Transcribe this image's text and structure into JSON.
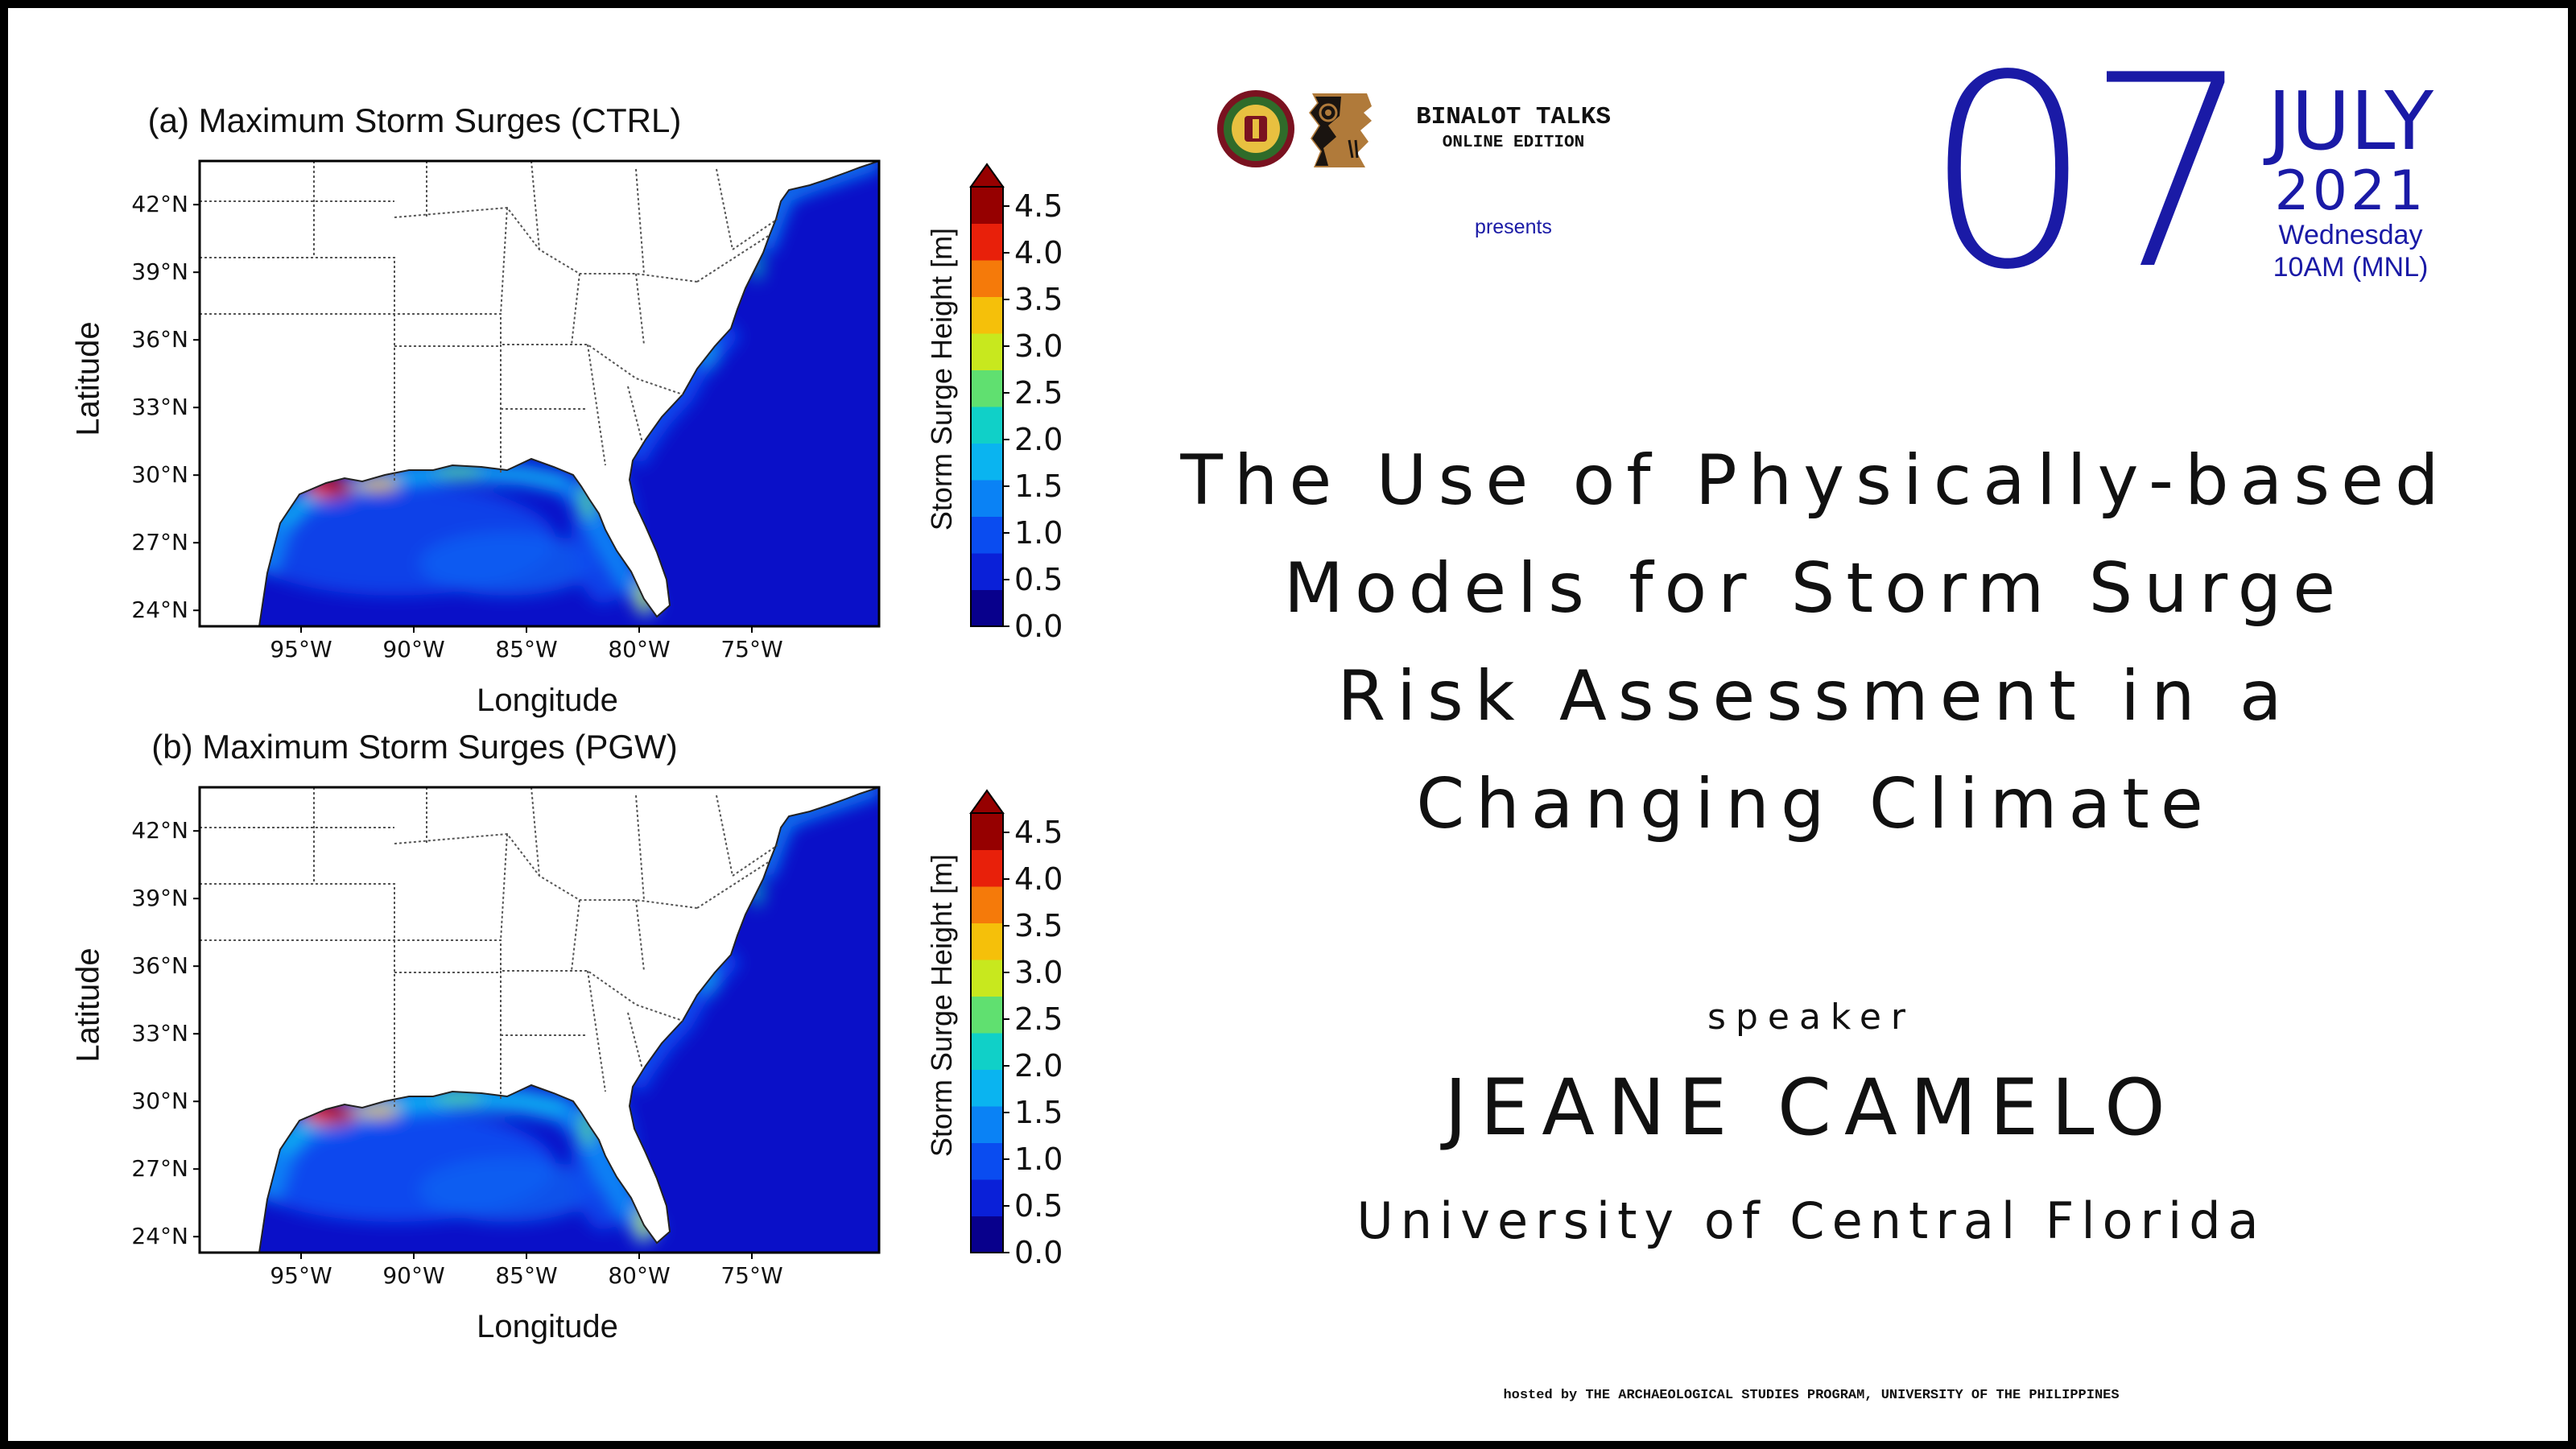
{
  "maps": [
    {
      "title": "(a) Maximum Storm Surges (CTRL)",
      "xlabel": "Longitude",
      "ylabel": "Latitude",
      "colorbar_label": "Storm Surge Height  [m]"
    },
    {
      "title": "(b) Maximum Storm Surges (PGW)",
      "xlabel": "Longitude",
      "ylabel": "Latitude",
      "colorbar_label": "Storm Surge Height  [m]"
    }
  ],
  "lat_ticks": [
    "42°N",
    "39°N",
    "36°N",
    "33°N",
    "30°N",
    "27°N",
    "24°N"
  ],
  "lon_ticks": [
    "95°W",
    "90°W",
    "85°W",
    "80°W",
    "75°W"
  ],
  "colorbar_ticks": [
    "4.5",
    "4.0",
    "3.5",
    "3.0",
    "2.5",
    "2.0",
    "1.5",
    "1.0",
    "0.5",
    "0.0"
  ],
  "colorbar_colors": [
    "#08008c",
    "#0a20d8",
    "#0a4cf0",
    "#0a82f5",
    "#0ab4f0",
    "#10d0c8",
    "#60e070",
    "#c8e81e",
    "#f5c00a",
    "#f57a0a",
    "#e8200a",
    "#960000"
  ],
  "header": {
    "event_name": "BINALOT TALKS",
    "edition": "ONLINE EDITION",
    "presents": "presents"
  },
  "date": {
    "day": "07",
    "month": "JULY",
    "year": "2021",
    "weekday": "Wednesday",
    "time": "10AM (MNL)"
  },
  "talk_title": [
    "The Use of Physically-based",
    "Models for Storm Surge",
    "Risk Assessment in a",
    "Changing Climate"
  ],
  "speaker": {
    "label": "speaker",
    "name": "JEANE CAMELO",
    "affiliation": "University of Central Florida"
  },
  "footer": "hosted by THE ARCHAEOLOGICAL STUDIES PROGRAM, UNIVERSITY OF THE PHILIPPINES",
  "colors": {
    "accent_blue": "#1a1aa6",
    "ocean": "#0a10c8",
    "text": "#111111"
  }
}
